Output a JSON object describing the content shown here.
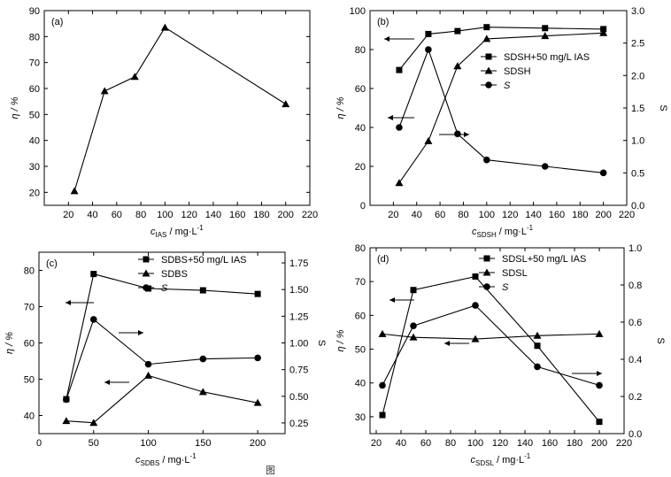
{
  "caption": "图",
  "chart_data": [
    {
      "type": "line",
      "panel_label": "(a)",
      "xlabel": "c",
      "xlabel_sub": "IAS",
      "xlabel_unit": " / mg·L",
      "xlabel_sup": "-1",
      "ylabel": "η / %",
      "xlim": [
        0,
        220
      ],
      "ylim": [
        15,
        90
      ],
      "xticks": [
        20,
        40,
        60,
        80,
        100,
        120,
        140,
        160,
        180,
        200,
        220
      ],
      "yticks": [
        20,
        30,
        40,
        50,
        60,
        70,
        80,
        90
      ],
      "series": [
        {
          "marker": "triangle",
          "axis": "left",
          "x": [
            25,
            50,
            75,
            100,
            200
          ],
          "y": [
            20.5,
            59,
            64.5,
            83.5,
            54
          ]
        }
      ]
    },
    {
      "type": "line",
      "panel_label": "(b)",
      "xlabel": "c",
      "xlabel_sub": "SDSH",
      "xlabel_unit": " / mg·L",
      "xlabel_sup": "-1",
      "ylabel": "η / %",
      "y2label": "S",
      "xlim": [
        0,
        220
      ],
      "ylim": [
        0,
        100
      ],
      "y2lim": [
        0,
        3.0
      ],
      "xticks": [
        20,
        40,
        60,
        80,
        100,
        120,
        140,
        160,
        180,
        200,
        220
      ],
      "yticks": [
        0,
        20,
        40,
        60,
        80,
        100
      ],
      "y2ticks": [
        "0.0",
        "0.5",
        "1.0",
        "1.5",
        "2.0",
        "2.5",
        "3.0"
      ],
      "legend_position": "top-right",
      "series": [
        {
          "name": "SDSH+50 mg/L IAS",
          "marker": "square",
          "axis": "left",
          "x": [
            25,
            50,
            75,
            100,
            150,
            200
          ],
          "y": [
            69.5,
            88,
            89.5,
            91.5,
            91,
            90.5
          ]
        },
        {
          "name": "SDSH",
          "marker": "triangle",
          "axis": "left",
          "x": [
            25,
            50,
            75,
            100,
            150,
            200
          ],
          "y": [
            11.5,
            33,
            71.5,
            85.5,
            87,
            88.5
          ]
        },
        {
          "name": "S",
          "marker": "circle",
          "axis": "right",
          "x": [
            25,
            50,
            75,
            100,
            150,
            200
          ],
          "y": [
            1.2,
            2.4,
            1.1,
            0.7,
            0.6,
            0.5
          ]
        }
      ]
    },
    {
      "type": "line",
      "panel_label": "(c)",
      "xlabel": "c",
      "xlabel_sub": "SDBS",
      "xlabel_unit": " / mg·L",
      "xlabel_sup": "-1",
      "ylabel": "η / %",
      "y2label": "S",
      "xlim": [
        0,
        225
      ],
      "ylim": [
        35,
        85
      ],
      "y2lim": [
        0.15,
        1.85
      ],
      "xticks": [
        0,
        50,
        100,
        150,
        200
      ],
      "yticks": [
        40,
        50,
        60,
        70,
        80
      ],
      "y2ticks": [
        "0.25",
        "0.50",
        "0.75",
        "1.00",
        "1.25",
        "1.50",
        "1.75"
      ],
      "legend_position": "top-right",
      "series": [
        {
          "name": "SDBS+50 mg/L IAS",
          "marker": "square",
          "axis": "left",
          "x": [
            25,
            50,
            100,
            150,
            200
          ],
          "y": [
            44.5,
            79,
            75,
            74.5,
            73.5
          ]
        },
        {
          "name": "SDBS",
          "marker": "triangle",
          "axis": "left",
          "x": [
            25,
            50,
            100,
            150,
            200
          ],
          "y": [
            38.5,
            38,
            51,
            46.5,
            43.5
          ]
        },
        {
          "name": "S",
          "marker": "circle",
          "axis": "right",
          "x": [
            25,
            50,
            100,
            150,
            200
          ],
          "y": [
            0.47,
            1.22,
            0.8,
            0.85,
            0.86
          ]
        }
      ]
    },
    {
      "type": "line",
      "panel_label": "(d)",
      "xlabel": "c",
      "xlabel_sub": "SDSL",
      "xlabel_unit": " / mg·L",
      "xlabel_sup": "-1",
      "ylabel": "η / %",
      "y2label": "S",
      "xlim": [
        15,
        220
      ],
      "ylim": [
        25,
        80
      ],
      "y2lim": [
        0,
        1.0
      ],
      "xticks": [
        20,
        40,
        60,
        80,
        100,
        120,
        140,
        160,
        180,
        200,
        220
      ],
      "yticks": [
        30,
        40,
        50,
        60,
        70,
        80
      ],
      "y2ticks": [
        "0.0",
        "0.2",
        "0.4",
        "0.6",
        "0.8",
        "1.0"
      ],
      "legend_position": "top-right",
      "series": [
        {
          "name": "SDSL+50 mg/L IAS",
          "marker": "square",
          "axis": "left",
          "x": [
            25,
            50,
            100,
            150,
            200
          ],
          "y": [
            30.5,
            67.5,
            71.5,
            51,
            28.5
          ]
        },
        {
          "name": "SDSL",
          "marker": "triangle",
          "axis": "left",
          "x": [
            25,
            50,
            100,
            150,
            200
          ],
          "y": [
            54.5,
            53.5,
            53,
            54,
            54.5
          ]
        },
        {
          "name": "S",
          "marker": "circle",
          "axis": "right",
          "x": [
            25,
            50,
            100,
            150,
            200
          ],
          "y": [
            0.26,
            0.58,
            0.69,
            0.36,
            0.26
          ]
        }
      ]
    }
  ]
}
